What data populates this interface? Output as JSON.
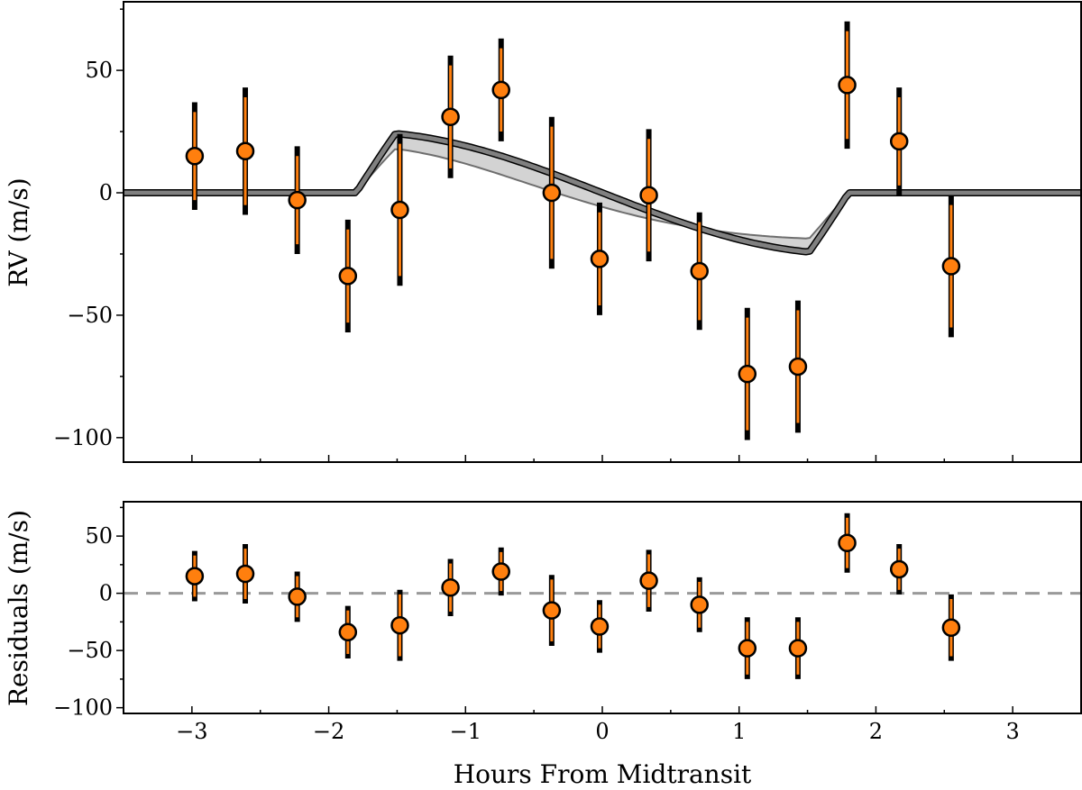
{
  "chart_data": [
    {
      "type": "scatter",
      "panel": "top",
      "title": "",
      "xlabel": "",
      "ylabel": "RV (m/s)",
      "xlim": [
        -3.5,
        3.5
      ],
      "ylim": [
        -110,
        78
      ],
      "xticks": [
        -3,
        -2,
        -1,
        0,
        1,
        2,
        3
      ],
      "yticks": [
        -100,
        -50,
        0,
        50
      ],
      "ytick_labels": [
        "−100",
        "−50",
        "0",
        "50"
      ],
      "grid": false,
      "points": [
        {
          "x": -2.98,
          "y": 15,
          "err_outer": 22,
          "err_inner": 18
        },
        {
          "x": -2.61,
          "y": 17,
          "err_outer": 26,
          "err_inner": 22
        },
        {
          "x": -2.23,
          "y": -3,
          "err_outer": 22,
          "err_inner": 18
        },
        {
          "x": -1.86,
          "y": -34,
          "err_outer": 23,
          "err_inner": 19
        },
        {
          "x": -1.48,
          "y": -7,
          "err_outer": 31,
          "err_inner": 27
        },
        {
          "x": -1.11,
          "y": 31,
          "err_outer": 25,
          "err_inner": 21
        },
        {
          "x": -0.74,
          "y": 42,
          "err_outer": 21,
          "err_inner": 17
        },
        {
          "x": -0.37,
          "y": 0,
          "err_outer": 31,
          "err_inner": 27
        },
        {
          "x": -0.02,
          "y": -27,
          "err_outer": 23,
          "err_inner": 19
        },
        {
          "x": 0.34,
          "y": -1,
          "err_outer": 27,
          "err_inner": 23
        },
        {
          "x": 0.71,
          "y": -32,
          "err_outer": 24,
          "err_inner": 20
        },
        {
          "x": 1.06,
          "y": -74,
          "err_outer": 27,
          "err_inner": 23
        },
        {
          "x": 1.43,
          "y": -71,
          "err_outer": 27,
          "err_inner": 23
        },
        {
          "x": 1.79,
          "y": 44,
          "err_outer": 26,
          "err_inner": 22
        },
        {
          "x": 2.17,
          "y": 21,
          "err_outer": 22,
          "err_inner": 18
        },
        {
          "x": 2.55,
          "y": -30,
          "err_outer": 29,
          "err_inner": 25
        }
      ],
      "model": {
        "transit_start": -1.8,
        "transit_end": 1.8,
        "amplitude_outer": 25,
        "amplitude_inner": 19,
        "inner_phase_lag": 0.28
      },
      "colors": {
        "marker_fill": "#ff7f0e",
        "marker_edge": "#000000",
        "errorbar_outer": "#000000",
        "errorbar_inner": "#ff7f0e",
        "model_line": "#808080",
        "model_fill": "#d3d3d3"
      }
    },
    {
      "type": "scatter",
      "panel": "bottom",
      "title": "",
      "xlabel": "Hours From Midtransit",
      "ylabel": "Residuals (m/s)",
      "xlim": [
        -3.5,
        3.5
      ],
      "ylim": [
        -105,
        80
      ],
      "xticks": [
        -3,
        -2,
        -1,
        0,
        1,
        2,
        3
      ],
      "xtick_labels": [
        "−3",
        "−2",
        "−1",
        "0",
        "1",
        "2",
        "3"
      ],
      "yticks": [
        -100,
        -50,
        0,
        50
      ],
      "ytick_labels": [
        "−100",
        "−50",
        "0",
        "50"
      ],
      "grid": false,
      "zero_line": {
        "y": 0,
        "style": "dashed",
        "color": "#999999"
      },
      "points": [
        {
          "x": -2.98,
          "y": 15,
          "err_outer": 22,
          "err_inner": 18
        },
        {
          "x": -2.61,
          "y": 17,
          "err_outer": 26,
          "err_inner": 22
        },
        {
          "x": -2.23,
          "y": -3,
          "err_outer": 22,
          "err_inner": 18
        },
        {
          "x": -1.86,
          "y": -34,
          "err_outer": 23,
          "err_inner": 19
        },
        {
          "x": -1.48,
          "y": -28,
          "err_outer": 31,
          "err_inner": 27
        },
        {
          "x": -1.11,
          "y": 5,
          "err_outer": 25,
          "err_inner": 21
        },
        {
          "x": -0.74,
          "y": 19,
          "err_outer": 21,
          "err_inner": 17
        },
        {
          "x": -0.37,
          "y": -15,
          "err_outer": 31,
          "err_inner": 27
        },
        {
          "x": -0.02,
          "y": -29,
          "err_outer": 23,
          "err_inner": 19
        },
        {
          "x": 0.34,
          "y": 11,
          "err_outer": 27,
          "err_inner": 23
        },
        {
          "x": 0.71,
          "y": -10,
          "err_outer": 24,
          "err_inner": 20
        },
        {
          "x": 1.06,
          "y": -48,
          "err_outer": 27,
          "err_inner": 23
        },
        {
          "x": 1.43,
          "y": -48,
          "err_outer": 27,
          "err_inner": 23
        },
        {
          "x": 1.79,
          "y": 44,
          "err_outer": 26,
          "err_inner": 22
        },
        {
          "x": 2.17,
          "y": 21,
          "err_outer": 22,
          "err_inner": 18
        },
        {
          "x": 2.55,
          "y": -30,
          "err_outer": 29,
          "err_inner": 25
        }
      ],
      "colors": {
        "marker_fill": "#ff7f0e",
        "marker_edge": "#000000",
        "errorbar_outer": "#000000",
        "errorbar_inner": "#ff7f0e"
      }
    }
  ]
}
